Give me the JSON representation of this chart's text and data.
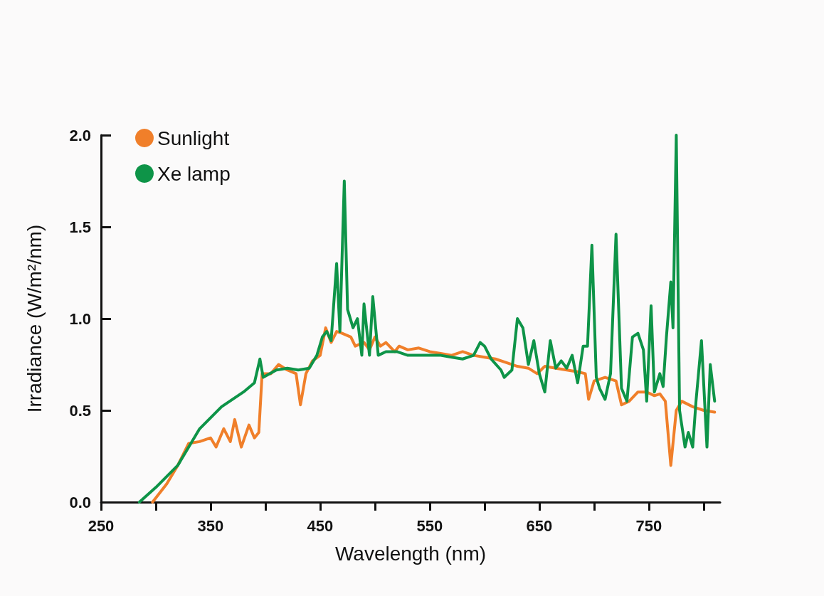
{
  "chart_data": {
    "type": "line",
    "xlabel": "Wavelength (nm)",
    "ylabel": "Irradiance (W/m²/nm)",
    "xlim": [
      250,
      815
    ],
    "ylim": [
      0,
      2
    ],
    "xticks": [
      250,
      {
        "value": 300,
        "label": null
      },
      350,
      {
        "value": 400,
        "label": null
      },
      450,
      {
        "value": 500,
        "label": null
      },
      550,
      {
        "value": 600,
        "label": null
      },
      650,
      {
        "value": 700,
        "label": null
      },
      750,
      {
        "value": 800,
        "label": null
      }
    ],
    "yticks": [
      {
        "value": 0,
        "label": "0.0"
      },
      {
        "value": 0.5,
        "label": "0.5"
      },
      {
        "value": 1,
        "label": "1.0"
      },
      {
        "value": 1.5,
        "label": "1.5"
      },
      {
        "value": 2,
        "label": "2.0"
      }
    ],
    "grid": false,
    "legend": "top left",
    "marker": "none",
    "line_style": "solid",
    "series": [
      {
        "name": "Sunlight",
        "color": "#f07f2a",
        "x": [
          297,
          310,
          320,
          330,
          340,
          350,
          355,
          362,
          368,
          372,
          378,
          385,
          390,
          394,
          397,
          405,
          412,
          420,
          428,
          432,
          437,
          443,
          450,
          455,
          460,
          465,
          470,
          478,
          482,
          490,
          495,
          500,
          505,
          510,
          518,
          522,
          530,
          540,
          550,
          560,
          570,
          580,
          590,
          600,
          610,
          620,
          630,
          640,
          648,
          655,
          665,
          675,
          685,
          692,
          695,
          700,
          710,
          720,
          725,
          732,
          740,
          748,
          755,
          760,
          765,
          770,
          775,
          780,
          790,
          800,
          810
        ],
        "values": [
          0,
          0.1,
          0.2,
          0.32,
          0.33,
          0.35,
          0.3,
          0.4,
          0.33,
          0.45,
          0.3,
          0.42,
          0.35,
          0.38,
          0.7,
          0.7,
          0.75,
          0.72,
          0.7,
          0.53,
          0.7,
          0.77,
          0.8,
          0.95,
          0.87,
          0.93,
          0.92,
          0.9,
          0.85,
          0.87,
          0.83,
          0.9,
          0.85,
          0.87,
          0.82,
          0.85,
          0.83,
          0.84,
          0.82,
          0.81,
          0.8,
          0.82,
          0.8,
          0.79,
          0.78,
          0.76,
          0.74,
          0.73,
          0.7,
          0.74,
          0.73,
          0.72,
          0.71,
          0.7,
          0.56,
          0.66,
          0.68,
          0.66,
          0.53,
          0.55,
          0.6,
          0.6,
          0.58,
          0.59,
          0.55,
          0.2,
          0.5,
          0.55,
          0.52,
          0.5,
          0.49
        ]
      },
      {
        "name": "Xe lamp",
        "color": "#0e9448",
        "x": [
          285,
          300,
          320,
          340,
          360,
          380,
          390,
          395,
          398,
          410,
          420,
          430,
          440,
          447,
          452,
          456,
          460,
          465,
          468,
          472,
          475,
          480,
          484,
          488,
          490,
          495,
          498,
          503,
          510,
          520,
          530,
          540,
          550,
          560,
          570,
          580,
          590,
          596,
          600,
          606,
          615,
          618,
          625,
          630,
          635,
          640,
          645,
          650,
          655,
          660,
          665,
          670,
          675,
          680,
          685,
          690,
          694,
          698,
          702,
          705,
          710,
          715,
          720,
          725,
          730,
          735,
          740,
          745,
          748,
          752,
          755,
          760,
          763,
          766,
          770,
          772,
          775,
          778,
          783,
          786,
          790,
          793,
          798,
          803,
          806,
          810
        ],
        "values": [
          0,
          0.08,
          0.2,
          0.4,
          0.52,
          0.6,
          0.65,
          0.78,
          0.68,
          0.72,
          0.73,
          0.72,
          0.73,
          0.8,
          0.9,
          0.93,
          0.88,
          1.3,
          0.93,
          1.75,
          1.05,
          0.95,
          1.0,
          0.8,
          1.08,
          0.8,
          1.12,
          0.8,
          0.82,
          0.82,
          0.8,
          0.8,
          0.8,
          0.8,
          0.79,
          0.78,
          0.8,
          0.87,
          0.85,
          0.78,
          0.72,
          0.68,
          0.72,
          1.0,
          0.95,
          0.75,
          0.88,
          0.7,
          0.6,
          0.88,
          0.73,
          0.77,
          0.73,
          0.8,
          0.65,
          0.85,
          0.85,
          1.4,
          0.68,
          0.62,
          0.56,
          0.7,
          1.46,
          0.62,
          0.55,
          0.9,
          0.92,
          0.83,
          0.55,
          1.07,
          0.6,
          0.7,
          0.63,
          0.9,
          1.2,
          0.95,
          2.0,
          0.5,
          0.3,
          0.38,
          0.3,
          0.55,
          0.88,
          0.3,
          0.75,
          0.55
        ]
      }
    ]
  }
}
